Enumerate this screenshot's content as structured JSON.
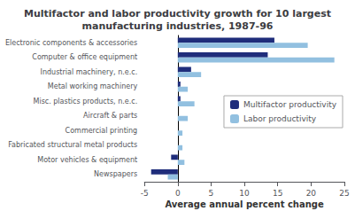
{
  "chart_data": {
    "type": "bar",
    "orientation": "horizontal",
    "title": "Multifactor and labor productivity growth for 10 largest\nmanufacturing industries, 1987-96",
    "categories": [
      "Electronic components & accessories",
      "Computer & office equipment",
      "Industrial machinery, n.e.c.",
      "Metal working machinery",
      "Misc. plastics products, n.e.c.",
      "Aircraft & parts",
      "Commercial printing",
      "Fabricated structural metal products",
      "Motor vehicles & equipment",
      "Newspapers"
    ],
    "series": [
      {
        "name": "Multifactor productivity",
        "color": "#1F2D7B",
        "values": [
          14.5,
          13.5,
          2.0,
          0.4,
          0.4,
          0.0,
          0.0,
          0.0,
          -1.0,
          -4.0
        ]
      },
      {
        "name": "Labor productivity",
        "color": "#92C0E0",
        "values": [
          19.5,
          23.5,
          3.5,
          1.5,
          2.5,
          1.5,
          0.7,
          0.7,
          1.0,
          -1.5
        ]
      }
    ],
    "xlabel": "Average annual percent change",
    "xlim": [
      -5,
      25
    ],
    "xticks": [
      -5,
      0,
      5,
      10,
      15,
      20,
      25
    ],
    "legend": "right",
    "grid": false
  }
}
